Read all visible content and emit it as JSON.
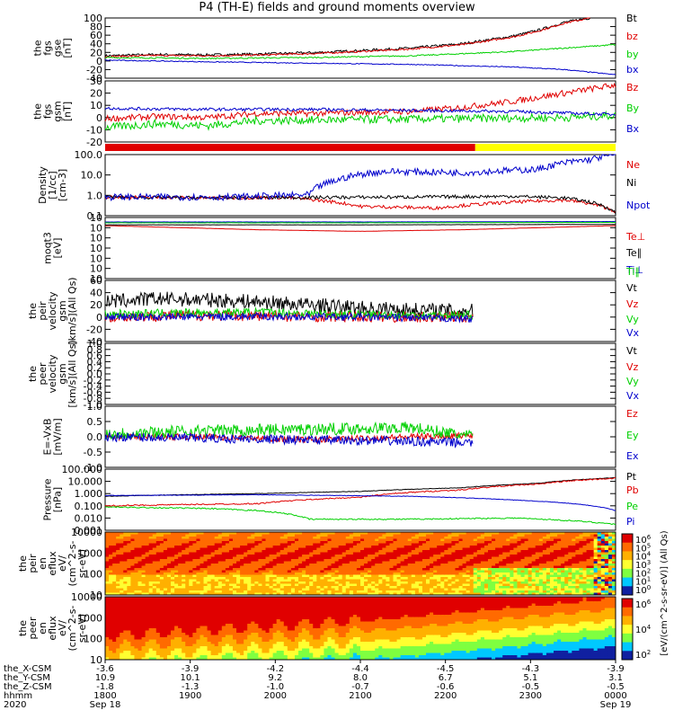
{
  "title": "P4 (TH-E) fields and ground moments overview",
  "colors": {
    "black": "#000000",
    "red": "#e00000",
    "green": "#00d000",
    "blue": "#0000cc",
    "yellow": "#ffff00",
    "axis": "#000000"
  },
  "chart_data": [
    {
      "type": "line",
      "id": "fgs_gse",
      "ylabel": [
        "the",
        "fgs",
        "gse",
        "[nT]"
      ],
      "yticks": [
        "100",
        "80",
        "60",
        "40",
        "20",
        "0",
        "-20",
        "-40"
      ],
      "ylim": [
        -40,
        100
      ],
      "series": [
        {
          "name": "Bt",
          "color": "black",
          "x": [
            0,
            0.1,
            0.2,
            0.3,
            0.4,
            0.5,
            0.6,
            0.7,
            0.8,
            0.85,
            0.9,
            0.95
          ],
          "values": [
            12,
            15,
            14,
            16,
            19,
            24,
            30,
            40,
            58,
            72,
            90,
            100
          ],
          "noise": 3
        },
        {
          "name": "bz",
          "color": "red",
          "x": [
            0,
            0.1,
            0.2,
            0.3,
            0.4,
            0.5,
            0.6,
            0.7,
            0.8,
            0.85,
            0.9,
            0.95
          ],
          "values": [
            10,
            13,
            12,
            14,
            17,
            22,
            28,
            38,
            56,
            70,
            88,
            100
          ],
          "noise": 2
        },
        {
          "name": "by",
          "color": "green",
          "x": [
            0,
            0.2,
            0.4,
            0.6,
            0.8,
            1.0
          ],
          "values": [
            8,
            6,
            8,
            12,
            22,
            38
          ],
          "noise": 1.5
        },
        {
          "name": "bx",
          "color": "blue",
          "x": [
            0,
            0.2,
            0.4,
            0.6,
            0.8,
            0.9,
            1.0
          ],
          "values": [
            2,
            -2,
            -5,
            -8,
            -14,
            -20,
            -32
          ],
          "noise": 1
        }
      ]
    },
    {
      "type": "line",
      "id": "fgs_gsm",
      "ylabel": [
        "the",
        "fgs",
        "gsm",
        "[nT]"
      ],
      "yticks": [
        "30",
        "20",
        "10",
        "0",
        "-10",
        "-20"
      ],
      "ylim": [
        -28,
        32
      ],
      "series": [
        {
          "name": "Bz",
          "color": "red",
          "x": [
            0,
            0.1,
            0.2,
            0.3,
            0.4,
            0.5,
            0.6,
            0.7,
            0.8,
            0.9,
            1.0
          ],
          "values": [
            -5,
            -3,
            -4,
            0,
            0,
            1,
            2,
            6,
            12,
            20,
            28
          ],
          "noise": 3
        },
        {
          "name": "By",
          "color": "green",
          "x": [
            0,
            0.1,
            0.2,
            0.3,
            0.5,
            0.7,
            0.9,
            1.0
          ],
          "values": [
            -14,
            -10,
            -12,
            -7,
            -6,
            -5,
            -4,
            -2
          ],
          "noise": 4
        },
        {
          "name": "Bx",
          "color": "blue",
          "x": [
            0,
            0.2,
            0.4,
            0.6,
            0.8,
            1.0
          ],
          "values": [
            5,
            4,
            4,
            3,
            2,
            -1
          ],
          "noise": 1.5
        }
      ]
    },
    {
      "type": "bar_strip",
      "id": "mode",
      "segments": [
        {
          "x0": 0,
          "x1": 0.725,
          "color": "red"
        },
        {
          "x0": 0.725,
          "x1": 1,
          "color": "yellow"
        }
      ]
    },
    {
      "type": "line",
      "id": "density",
      "log": true,
      "ylabel": [
        "Density",
        "[1/cc]",
        "[cm-3]"
      ],
      "yticks": [
        "100.0",
        "10.0",
        "1.0",
        "0.1"
      ],
      "ylim": [
        0.07,
        300
      ],
      "series": [
        {
          "name": "Ne",
          "color": "red",
          "x": [
            0,
            0.2,
            0.35,
            0.5,
            0.65,
            0.8,
            0.9,
            1.0
          ],
          "values": [
            0.9,
            0.8,
            0.85,
            0.25,
            0.2,
            0.45,
            0.6,
            0.12
          ],
          "noise": 0.1
        },
        {
          "name": "Ni",
          "color": "black",
          "x": [
            0,
            0.2,
            0.4,
            0.6,
            0.8,
            0.9,
            1.0
          ],
          "values": [
            0.9,
            0.8,
            0.85,
            0.9,
            1.0,
            0.8,
            0.1
          ],
          "noise": 0.1
        },
        {
          "name": "Npot",
          "color": "blue",
          "x": [
            0,
            0.25,
            0.4,
            0.45,
            0.5,
            0.55,
            0.7,
            0.85,
            0.95,
            1.0
          ],
          "values": [
            0.9,
            0.9,
            1.2,
            8,
            20,
            30,
            25,
            40,
            150,
            300
          ],
          "noise": 0.2
        }
      ]
    },
    {
      "type": "line",
      "id": "temperature",
      "log": true,
      "ylabel": [
        "moqt3",
        "[eV]"
      ],
      "yticks": [
        "10",
        "10",
        "10",
        "10",
        "10",
        "10",
        "10"
      ],
      "ylim": [
        -10,
        5
      ],
      "series": [
        {
          "name": "Te⊥",
          "color": "red",
          "x": [
            0,
            0.3,
            0.5,
            0.7,
            1.0
          ],
          "values": [
            3,
            2,
            1.6,
            2,
            3
          ],
          "noise": 0.02
        },
        {
          "name": "Te∥",
          "color": "black",
          "x": [
            0,
            0.5,
            1.0
          ],
          "values": [
            3.2,
            3.2,
            3.3
          ],
          "noise": 0.02
        },
        {
          "name": "Ti⊥",
          "color": "blue",
          "x": [
            0,
            0.5,
            1.0
          ],
          "values": [
            3.9,
            3.9,
            4
          ],
          "noise": 0.02
        },
        {
          "name": "Ti∥",
          "color": "green",
          "x": [
            0,
            0.5,
            1.0
          ],
          "values": [
            3.7,
            3.7,
            3.8
          ],
          "noise": 0.02
        }
      ]
    },
    {
      "type": "line",
      "id": "peir_velocity",
      "ylabel": [
        "the",
        "peir",
        "velocity",
        "gsm",
        "[km/s](All Qs)"
      ],
      "yticks": [
        "60",
        "40",
        "20",
        "0",
        "-20",
        "-40"
      ],
      "ylim": [
        -40,
        60
      ],
      "series": [
        {
          "name": "Vt",
          "color": "black",
          "x": [
            0,
            0.1,
            0.2,
            0.3,
            0.4,
            0.5,
            0.6,
            0.72
          ],
          "values": [
            25,
            30,
            28,
            25,
            20,
            15,
            12,
            10
          ],
          "noise": 12
        },
        {
          "name": "Vz",
          "color": "red",
          "x": [
            0,
            0.1,
            0.2,
            0.4,
            0.6,
            0.72
          ],
          "values": [
            0,
            2,
            3,
            1,
            0,
            0
          ],
          "noise": 9
        },
        {
          "name": "Vy",
          "color": "green",
          "x": [
            0,
            0.3,
            0.5,
            0.72
          ],
          "values": [
            5,
            8,
            4,
            3
          ],
          "noise": 7
        },
        {
          "name": "Vx",
          "color": "blue",
          "x": [
            0,
            0.3,
            0.5,
            0.72
          ],
          "values": [
            0,
            1,
            0,
            -3
          ],
          "noise": 6
        }
      ]
    },
    {
      "type": "line",
      "id": "peer_velocity",
      "ylabel": [
        "the",
        "peer",
        "velocity",
        "gsm",
        "[km/s](All Qs)"
      ],
      "yticks": [
        "1.0",
        "0.8",
        "0.6",
        "0.4",
        "0.2",
        "0.0",
        "-0.2",
        "-0.4",
        "-0.6",
        "-0.8",
        "-1.0"
      ],
      "ylim": [
        -1,
        1
      ],
      "series": [
        {
          "name": "Vt",
          "color": "black",
          "x": [],
          "values": [],
          "noise": 0
        },
        {
          "name": "Vz",
          "color": "red",
          "x": [],
          "values": [],
          "noise": 0
        },
        {
          "name": "Vy",
          "color": "green",
          "x": [],
          "values": [],
          "noise": 0
        },
        {
          "name": "Vx",
          "color": "blue",
          "x": [],
          "values": [],
          "noise": 0
        }
      ]
    },
    {
      "type": "line",
      "id": "efield",
      "ylabel": [
        "E=-VxB",
        "[mV/m]"
      ],
      "yticks": [
        "1.0",
        "0.5",
        "0.0",
        "-0.5",
        "-1.0"
      ],
      "ylim": [
        -1,
        1
      ],
      "series": [
        {
          "name": "Ez",
          "color": "red",
          "x": [
            0,
            0.2,
            0.4,
            0.6,
            0.72
          ],
          "values": [
            0,
            0,
            -0.1,
            0,
            0.05
          ],
          "noise": 0.1
        },
        {
          "name": "Ey",
          "color": "green",
          "x": [
            0,
            0.2,
            0.4,
            0.6,
            0.72
          ],
          "values": [
            0.1,
            0.2,
            0.25,
            0.3,
            0
          ],
          "noise": 0.2
        },
        {
          "name": "Ex",
          "color": "blue",
          "x": [
            0,
            0.2,
            0.4,
            0.6,
            0.72
          ],
          "values": [
            0,
            -0.05,
            -0.1,
            -0.15,
            -0.2
          ],
          "noise": 0.15
        }
      ]
    },
    {
      "type": "line",
      "id": "pressure",
      "log": true,
      "ylabel": [
        "Pressure",
        "[nPa]"
      ],
      "yticks": [
        "100.000",
        "10.000",
        "1.000",
        "0.100",
        "0.010",
        "0.001"
      ],
      "ylim": [
        0.001,
        100
      ],
      "series": [
        {
          "name": "Pt",
          "color": "black",
          "x": [
            0,
            0.3,
            0.5,
            0.7,
            0.85,
            1.0
          ],
          "values": [
            0.6,
            1,
            1.5,
            3,
            7,
            20
          ],
          "noise": 0.02
        },
        {
          "name": "Pb",
          "color": "red",
          "x": [
            0,
            0.3,
            0.5,
            0.7,
            0.85,
            1.0
          ],
          "values": [
            0.1,
            0.15,
            0.5,
            2,
            6,
            18
          ],
          "noise": 0.05
        },
        {
          "name": "Pe",
          "color": "green",
          "x": [
            0,
            0.2,
            0.3,
            0.4,
            0.6,
            0.8,
            1.0
          ],
          "values": [
            0.08,
            0.06,
            0.04,
            0.008,
            0.008,
            0.01,
            0.003
          ],
          "noise": 0.05
        },
        {
          "name": "Pi",
          "color": "blue",
          "x": [
            0,
            0.3,
            0.6,
            0.8,
            1.0
          ],
          "values": [
            0.7,
            0.8,
            0.6,
            0.3,
            0.04
          ],
          "noise": 0.02
        }
      ]
    },
    {
      "type": "heatmap",
      "id": "peir_en_eflux",
      "ylabel": [
        "the",
        "peir",
        "en",
        "eflux",
        "eV/",
        "(cm^2-s-",
        "sr-eV)"
      ],
      "yticks": [
        "10000",
        "1000",
        "100",
        "10"
      ]
    },
    {
      "type": "heatmap",
      "id": "peer_en_eflux",
      "ylabel": [
        "the",
        "peer",
        "en",
        "eflux",
        "eV/",
        "(cm^2-s-",
        "sr-eV)"
      ],
      "yticks": [
        "10000",
        "1000",
        "100",
        "10"
      ]
    }
  ],
  "colorbar1": {
    "ticks": [
      "10^6",
      "10^5",
      "10^4",
      "10^3",
      "10^2",
      "10^1",
      "10^0"
    ]
  },
  "colorbar2": {
    "ticks": [
      "10^6",
      "10^4",
      "10^2"
    ]
  },
  "colorbar_label": "[eV/(cm^2-s-sr-eV)] (All Qs)",
  "xaxis": {
    "rows": [
      {
        "label": "the_X-CSM",
        "values": [
          "-3.6",
          "-3.9",
          "-4.2",
          "-4.4",
          "-4.5",
          "-4.3",
          "-3.9"
        ]
      },
      {
        "label": "the_Y-CSM",
        "values": [
          "10.9",
          "10.1",
          "9.2",
          "8.0",
          "6.7",
          "5.1",
          "3.1"
        ]
      },
      {
        "label": "the_Z-CSM",
        "values": [
          "-1.8",
          "-1.3",
          "-1.0",
          "-0.7",
          "-0.6",
          "-0.5",
          "-0.5"
        ]
      },
      {
        "label": "hhmm",
        "values": [
          "1800",
          "1900",
          "2000",
          "2100",
          "2200",
          "2300",
          "0000"
        ]
      }
    ],
    "year": "2020",
    "date_start": "Sep 18",
    "date_end": "Sep 19"
  }
}
